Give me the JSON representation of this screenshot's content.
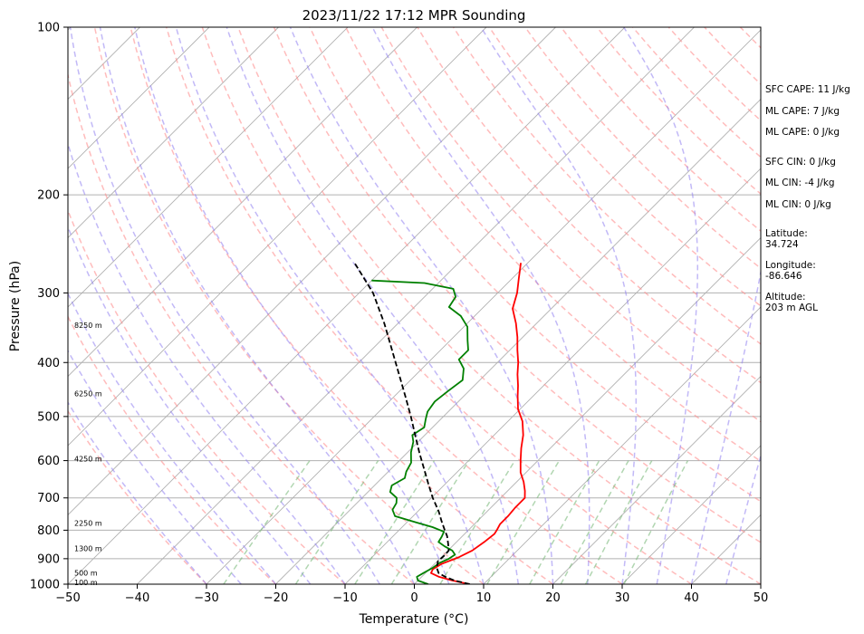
{
  "chart_data": {
    "type": "line",
    "title": "2023/11/22 17:12 MPR Sounding",
    "xlabel": "Temperature (°C)",
    "ylabel": "Pressure (hPa)",
    "xlim": [
      -50,
      50
    ],
    "ylim": [
      1000,
      100
    ],
    "y_scale": "log",
    "x_ticks": [
      "−50",
      "−40",
      "−30",
      "−20",
      "−10",
      "0",
      "10",
      "20",
      "30",
      "40",
      "50"
    ],
    "y_ticks": [
      {
        "p": 100,
        "label": "100"
      },
      {
        "p": 200,
        "label": "200"
      },
      {
        "p": 300,
        "label": "300"
      },
      {
        "p": 400,
        "label": "400"
      },
      {
        "p": 500,
        "label": "500"
      },
      {
        "p": 600,
        "label": "600"
      },
      {
        "p": 700,
        "label": "700"
      },
      {
        "p": 800,
        "label": "800"
      },
      {
        "p": 900,
        "label": "900"
      },
      {
        "p": 1000,
        "label": "1000"
      }
    ],
    "height_labels": [
      {
        "p": 343,
        "label": "8250 m"
      },
      {
        "p": 455,
        "label": "6250 m"
      },
      {
        "p": 595,
        "label": "4250 m"
      },
      {
        "p": 777,
        "label": "2250 m"
      },
      {
        "p": 862,
        "label": "1300 m"
      },
      {
        "p": 955,
        "label": "500 m"
      },
      {
        "p": 993,
        "label": "100 m"
      }
    ],
    "annotations": [
      "SFC CAPE: 11 J/kg",
      "ML CAPE: 7 J/kg",
      "ML CAPE: 0 J/kg",
      "SFC CIN: 0 J/kg",
      "ML CIN: -4 J/kg",
      "ML CIN: 0 J/kg",
      "Latitude:",
      "34.724",
      "Longitude:",
      "-86.646",
      "Altitude:",
      "203 m AGL"
    ],
    "series": [
      {
        "color": "#ff0000",
        "points": [
          [
            1000,
            8.0
          ],
          [
            985,
            5.0
          ],
          [
            970,
            2.5
          ],
          [
            955,
            0.8
          ],
          [
            940,
            0.5
          ],
          [
            920,
            1.0
          ],
          [
            895,
            2.5
          ],
          [
            870,
            3.5
          ],
          [
            840,
            4.0
          ],
          [
            812,
            4.3
          ],
          [
            800,
            4.1
          ],
          [
            780,
            3.7
          ],
          [
            755,
            3.7
          ],
          [
            728,
            3.5
          ],
          [
            700,
            3.5
          ],
          [
            680,
            2.5
          ],
          [
            655,
            1.0
          ],
          [
            630,
            -0.8
          ],
          [
            600,
            -2.5
          ],
          [
            570,
            -4.2
          ],
          [
            540,
            -5.8
          ],
          [
            510,
            -7.9
          ],
          [
            485,
            -10.3
          ],
          [
            460,
            -12.2
          ],
          [
            440,
            -13.7
          ],
          [
            420,
            -15.4
          ],
          [
            400,
            -17.0
          ],
          [
            380,
            -18.9
          ],
          [
            360,
            -20.8
          ],
          [
            340,
            -23.0
          ],
          [
            320,
            -25.6
          ],
          [
            300,
            -27.2
          ],
          [
            283,
            -29.0
          ],
          [
            265,
            -31.0
          ]
        ]
      },
      {
        "color": "#008000",
        "points": [
          [
            1000,
            2.0
          ],
          [
            985,
            0.0
          ],
          [
            970,
            -0.7
          ],
          [
            955,
            -0.3
          ],
          [
            935,
            0.3
          ],
          [
            915,
            0.6
          ],
          [
            900,
            1.3
          ],
          [
            885,
            1.6
          ],
          [
            870,
            0.6
          ],
          [
            855,
            -1.1
          ],
          [
            840,
            -2.6
          ],
          [
            822,
            -2.9
          ],
          [
            805,
            -3.3
          ],
          [
            790,
            -5.6
          ],
          [
            775,
            -8.6
          ],
          [
            755,
            -12.6
          ],
          [
            735,
            -13.9
          ],
          [
            715,
            -14.3
          ],
          [
            700,
            -15.0
          ],
          [
            683,
            -16.8
          ],
          [
            665,
            -17.5
          ],
          [
            645,
            -16.7
          ],
          [
            628,
            -17.4
          ],
          [
            605,
            -18.0
          ],
          [
            580,
            -19.5
          ],
          [
            555,
            -20.7
          ],
          [
            540,
            -21.8
          ],
          [
            523,
            -21.2
          ],
          [
            505,
            -22.2
          ],
          [
            490,
            -23.0
          ],
          [
            470,
            -23.4
          ],
          [
            450,
            -23.0
          ],
          [
            430,
            -22.5
          ],
          [
            410,
            -24.0
          ],
          [
            395,
            -26.0
          ],
          [
            380,
            -26.0
          ],
          [
            365,
            -27.5
          ],
          [
            345,
            -29.5
          ],
          [
            330,
            -32.0
          ],
          [
            318,
            -35.0
          ],
          [
            305,
            -35.5
          ],
          [
            295,
            -37.0
          ],
          [
            288,
            -42.0
          ],
          [
            285,
            -50.0
          ]
        ]
      },
      {
        "color": "#000000",
        "dashed": true,
        "points": [
          [
            1000,
            8.0
          ],
          [
            985,
            5.3
          ],
          [
            970,
            3.4
          ],
          [
            955,
            1.9
          ],
          [
            935,
            0.9
          ],
          [
            910,
            0.1
          ],
          [
            885,
            0.2
          ],
          [
            870,
            0.1
          ],
          [
            845,
            -1.0
          ],
          [
            820,
            -2.2
          ],
          [
            800,
            -3.4
          ],
          [
            770,
            -5.2
          ],
          [
            740,
            -7.0
          ],
          [
            700,
            -9.8
          ],
          [
            660,
            -12.5
          ],
          [
            620,
            -15.3
          ],
          [
            580,
            -18.3
          ],
          [
            540,
            -21.4
          ],
          [
            500,
            -24.7
          ],
          [
            460,
            -28.4
          ],
          [
            420,
            -32.5
          ],
          [
            380,
            -37.0
          ],
          [
            340,
            -42.0
          ],
          [
            300,
            -48.0
          ],
          [
            265,
            -55.0
          ]
        ]
      }
    ],
    "colors": {
      "temperature": "#ff0000",
      "dewpoint": "#008000",
      "parcel": "#000000",
      "isotherm": "#b0b0b0",
      "pressure_grid": "#b0b0b0",
      "dry_adiabat": "#ff9090",
      "moist_adiabat": "#8f80f0",
      "mixing_ratio": "#7dba7d"
    }
  }
}
